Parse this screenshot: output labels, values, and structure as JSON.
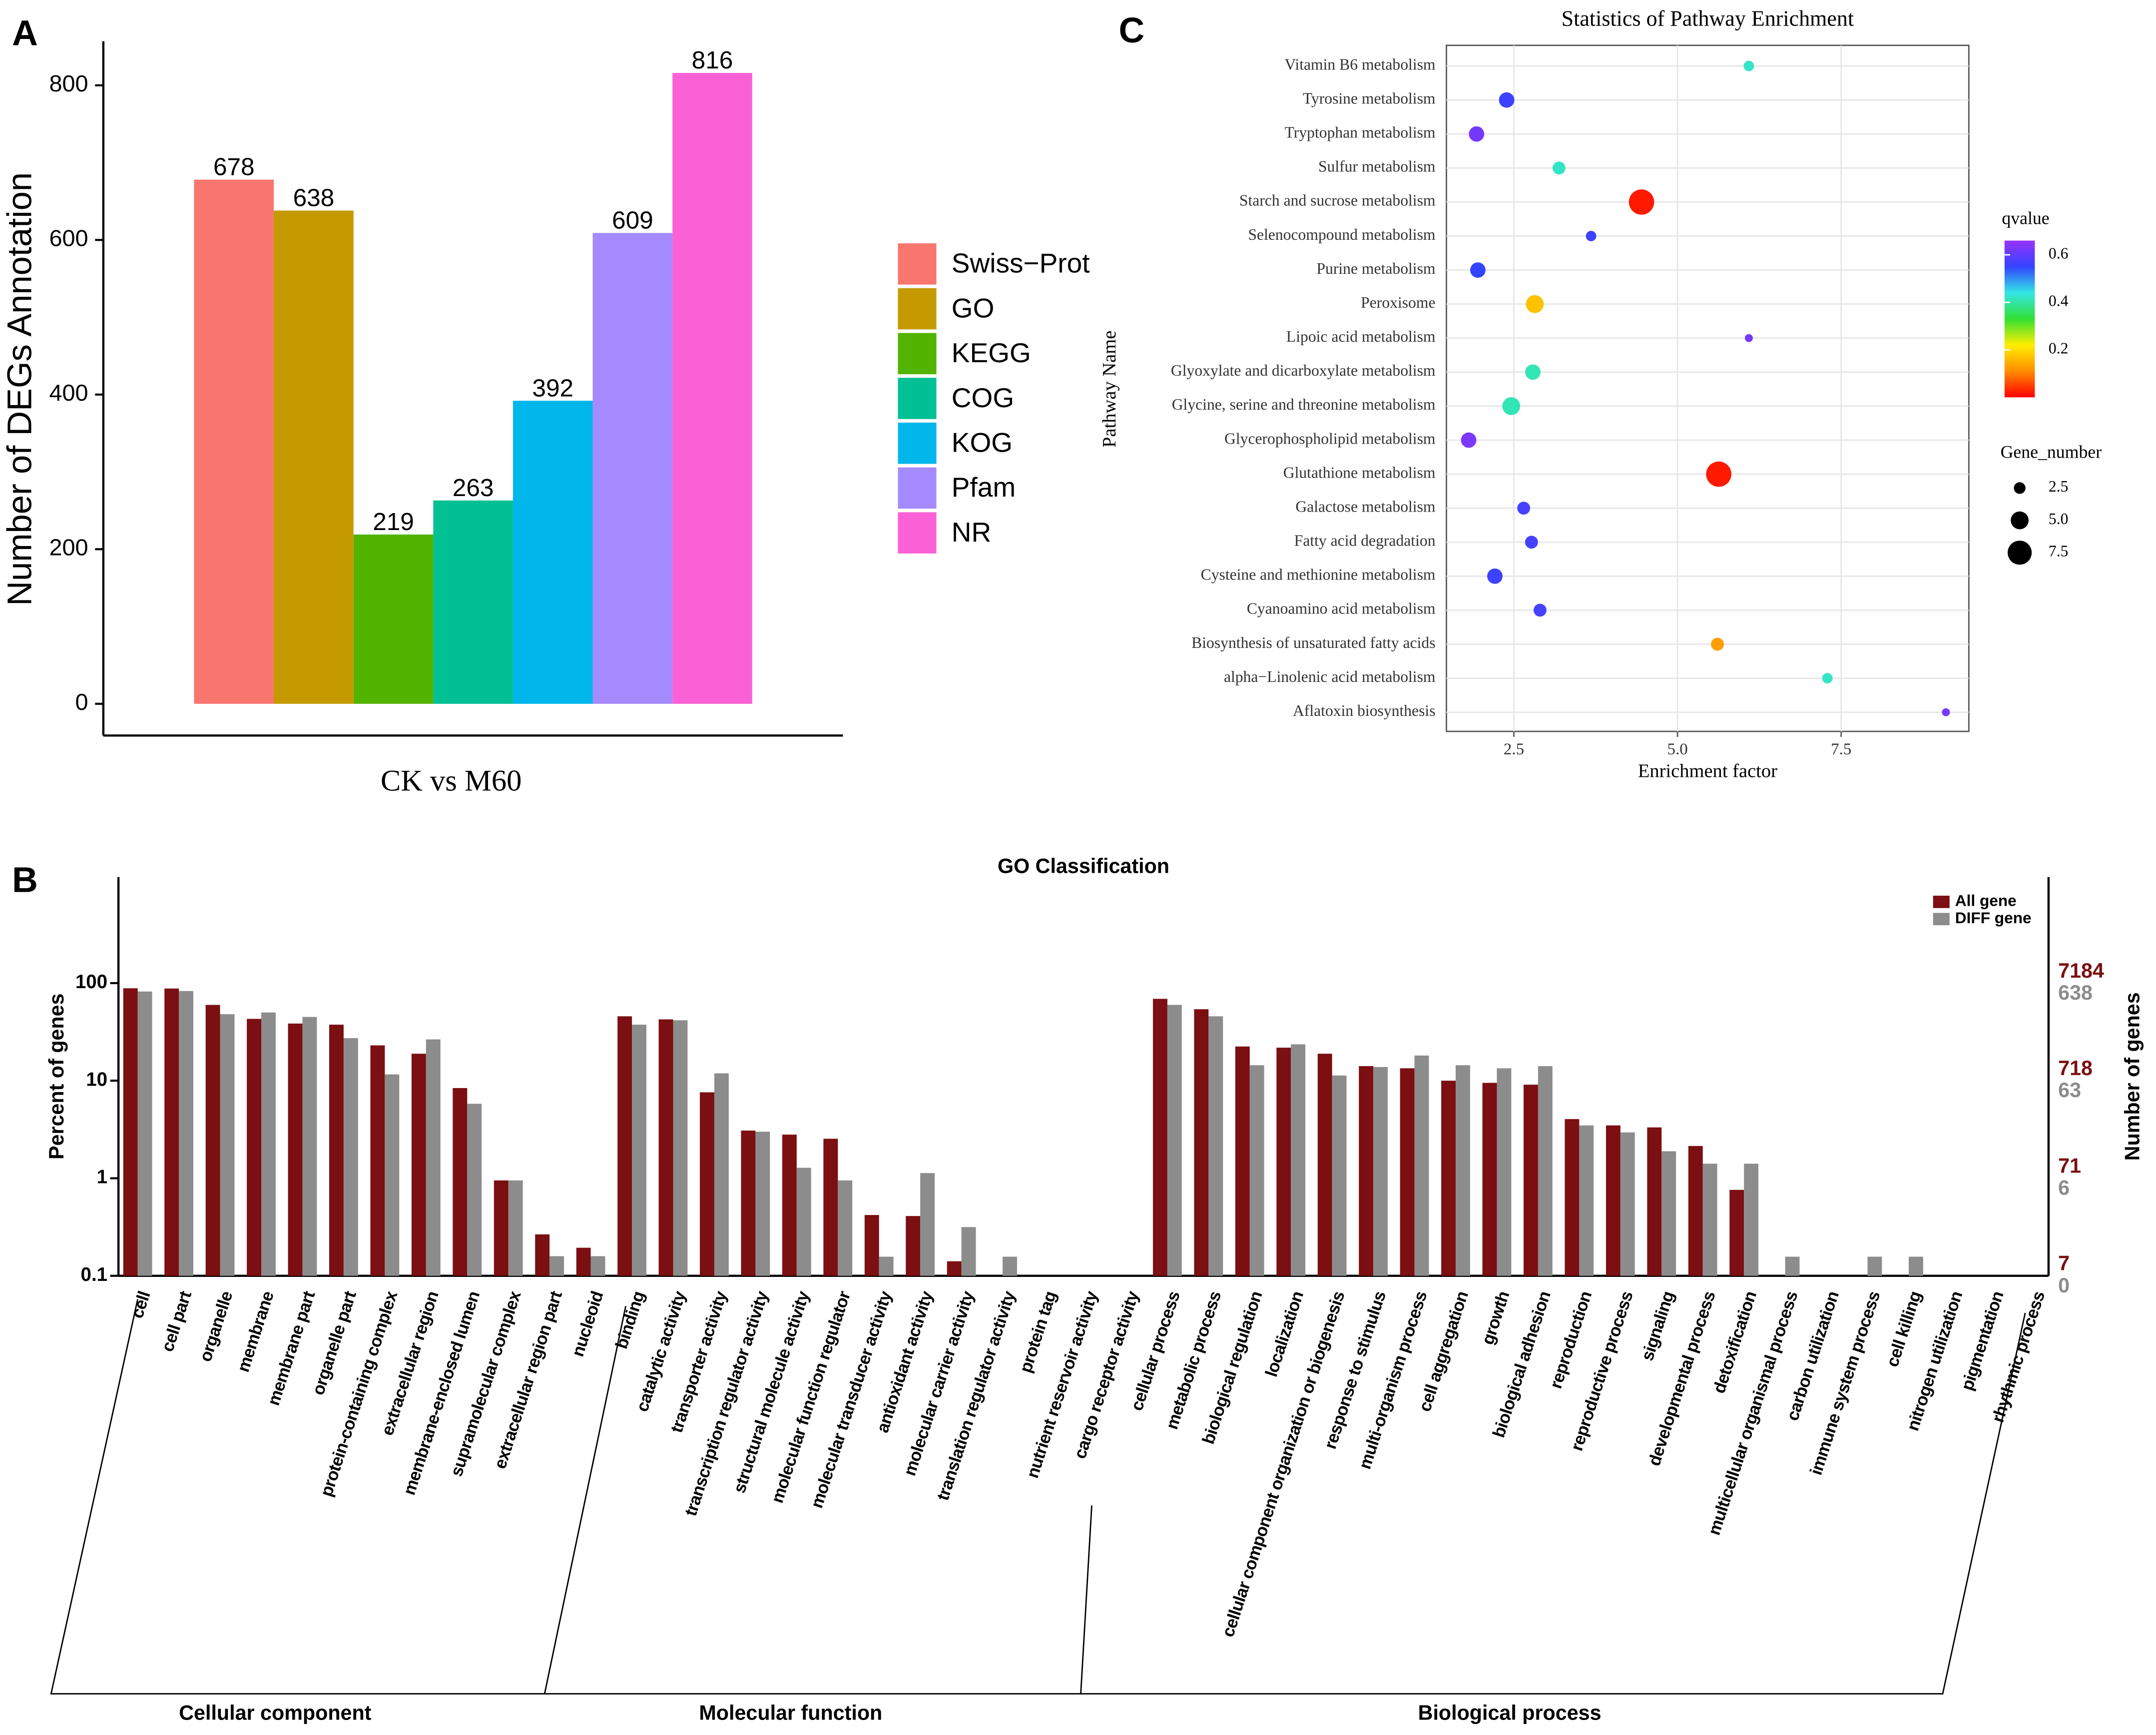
{
  "chart_data": [
    {
      "type": "bar",
      "panel": "A",
      "ylabel": "Number of DEGs Annotation",
      "xlabel": "CK vs M60",
      "categories": [
        "Swiss−Prot",
        "GO",
        "KEGG",
        "COG",
        "KOG",
        "Pfam",
        "NR"
      ],
      "values": [
        678,
        638,
        219,
        263,
        392,
        609,
        816
      ],
      "colors": [
        "#f8766d",
        "#c49a00",
        "#53b400",
        "#00c094",
        "#00b6eb",
        "#a58aff",
        "#fb61d7"
      ],
      "ylim": [
        -41,
        857
      ],
      "yticks": [
        0,
        200,
        400,
        600,
        800
      ],
      "legend": "right"
    },
    {
      "type": "grouped_bar",
      "panel": "B",
      "title": "GO Classification",
      "ylabel": "Percent of genes",
      "y2label": "Number of genes",
      "log_y": true,
      "ylim": [
        0.1,
        1200
      ],
      "yticks": [
        0.1,
        1,
        10,
        100
      ],
      "legend": "top-right",
      "group_labels": [
        "Cellular component",
        "Molecular function",
        "Biological process"
      ],
      "categories": [
        "cell",
        "cell part",
        "organelle",
        "membrane",
        "membrane part",
        "organelle part",
        "protein-containing complex",
        "extracellular region",
        "membrane-enclosed lumen",
        "supramolecular complex",
        "extracellular region part",
        "nucleoid",
        "binding",
        "catalytic activity",
        "transporter activity",
        "transcription regulator activity",
        "structural molecule activity",
        "molecular function regulator",
        "molecular transducer activity",
        "antioxidant activity",
        "molecular carrier activity",
        "translation regulator activity",
        "protein tag",
        "nutrient reservoir activity",
        "cargo receptor activity",
        "cellular process",
        "metabolic process",
        "biological regulation",
        "localization",
        "cellular component organization or biogenesis",
        "response to stimulus",
        "multi-organism process",
        "cell aggregation",
        "growth",
        "biological adhesion",
        "reproduction",
        "reproductive process",
        "signaling",
        "developmental process",
        "detoxification",
        "multicellular organismal process",
        "carbon utilization",
        "immune system process",
        "cell killing",
        "nitrogen utilization",
        "pigmentation",
        "rhythmic process"
      ],
      "series": [
        {
          "name": "All gene",
          "color": "#7b0f12",
          "values": [
            88.5,
            88,
            59.8,
            43,
            38.5,
            37.5,
            23,
            18.9,
            8.4,
            0.95,
            0.266,
            0.194,
            45.7,
            42.5,
            7.6,
            3.08,
            2.8,
            2.54,
            0.42,
            0.41,
            0.141,
            null,
            null,
            null,
            null,
            69,
            54,
            22.4,
            21.8,
            18.9,
            14.1,
            13.4,
            10,
            9.5,
            9.1,
            4.04,
            3.48,
            3.32,
            2.14,
            0.76,
            null,
            null,
            null,
            null,
            null,
            null,
            null
          ],
          "axis_ticks": [
            {
              "value": 100,
              "label": "7184"
            },
            {
              "value": 10,
              "label": "718"
            },
            {
              "value": 1,
              "label": "71"
            },
            {
              "value": 0.1,
              "label": "7"
            }
          ]
        },
        {
          "name": "DIFF gene",
          "color": "#8c8c8c",
          "values": [
            82,
            83,
            48,
            50,
            45,
            27.3,
            11.6,
            26.5,
            5.8,
            0.95,
            0.159,
            0.159,
            37.5,
            41.6,
            11.9,
            3.0,
            1.28,
            0.95,
            0.157,
            1.13,
            0.316,
            0.157,
            null,
            null,
            null,
            59.8,
            45.7,
            14.4,
            23.6,
            11.3,
            13.8,
            18.1,
            14.4,
            13.4,
            14.1,
            3.48,
            2.95,
            1.89,
            1.41,
            1.41,
            0.157,
            null,
            0.157,
            0.157,
            null,
            null,
            null
          ],
          "axis_ticks": [
            {
              "value": 100,
              "label": "638"
            },
            {
              "value": 10,
              "label": "63"
            },
            {
              "value": 1,
              "label": "6"
            },
            {
              "value": 0.1,
              "label": "0"
            }
          ]
        }
      ]
    },
    {
      "type": "scatter",
      "panel": "C",
      "title": "Statistics of Pathway Enrichment",
      "xlabel": "Enrichment factor",
      "ylabel": "Pathway Name",
      "categories": [
        "Vitamin B6 metabolism",
        "Tyrosine metabolism",
        "Tryptophan metabolism",
        "Sulfur metabolism",
        "Starch and sucrose metabolism",
        "Selenocompound metabolism",
        "Purine metabolism",
        "Peroxisome",
        "Lipoic acid metabolism",
        "Glyoxylate and dicarboxylate metabolism",
        "Glycine, serine and threonine metabolism",
        "Glycerophospholipid metabolism",
        "Glutathione metabolism",
        "Galactose metabolism",
        "Fatty acid degradation",
        "Cysteine and methionine metabolism",
        "Cyanoamino acid metabolism",
        "Biosynthesis of unsaturated fatty acids",
        "alpha−Linolenic acid metabolism",
        "Aflatoxin biosynthesis"
      ],
      "values": [
        6.09,
        2.39,
        1.93,
        3.19,
        4.45,
        3.68,
        1.95,
        2.82,
        6.09,
        2.79,
        2.46,
        1.81,
        5.63,
        2.65,
        2.77,
        2.21,
        2.9,
        5.61,
        7.29,
        9.1
      ],
      "sizes": [
        2,
        4,
        4,
        3,
        8,
        2,
        4,
        5,
        1,
        4,
        5,
        4,
        8,
        3,
        3,
        4,
        3,
        3,
        2,
        1
      ],
      "qvalues": [
        0.42,
        0.56,
        0.62,
        0.42,
        0.02,
        0.56,
        0.55,
        0.17,
        0.62,
        0.41,
        0.41,
        0.63,
        0.02,
        0.57,
        0.57,
        0.56,
        0.57,
        0.13,
        0.42,
        0.62
      ],
      "xlim": [
        1.47,
        9.45
      ],
      "xticks": [
        2.5,
        {
          "value": 5,
          "label": "5.0"
        },
        7.5
      ],
      "grid": true,
      "color_label": "qvalue",
      "color_lim": [
        0,
        0.66
      ],
      "color_ticks": [
        0.2,
        0.4,
        0.6
      ],
      "colorscale": [
        "#ff0000",
        "#ff8c00",
        "#ffee00",
        "#33e033",
        "#33e6e6",
        "#3344ff",
        "#9933ff"
      ],
      "size_label": "Gene_number",
      "size_ticks": [
        2.5,
        {
          "value": 5,
          "label": "5.0"
        },
        7.5
      ]
    }
  ]
}
